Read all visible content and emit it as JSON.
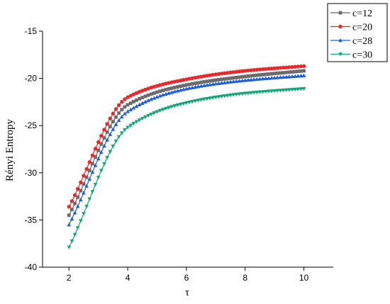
{
  "chart_data": {
    "type": "line",
    "xlabel": "τ",
    "ylabel": "Rényi  Entropy",
    "xlim": [
      1.1,
      11.0
    ],
    "ylim": [
      -40,
      -15
    ],
    "xticks": [
      2,
      4,
      6,
      8,
      10
    ],
    "yticks": [
      -40,
      -35,
      -30,
      -25,
      -20,
      -15
    ],
    "grid": false,
    "legend_position": "top-right",
    "x": [
      2,
      4,
      6,
      8,
      10
    ],
    "series": [
      {
        "name": "c=12",
        "color": "#6b6b6b",
        "marker": "square",
        "values": [
          -34.5,
          -22.8,
          -20.7,
          -19.8,
          -19.2
        ]
      },
      {
        "name": "c=20",
        "color": "#e8282d",
        "marker": "circle",
        "values": [
          -33.6,
          -22.0,
          -20.1,
          -19.2,
          -18.7
        ]
      },
      {
        "name": "c=28",
        "color": "#1f5fd6",
        "marker": "triangle-up",
        "values": [
          -35.5,
          -23.5,
          -21.1,
          -20.2,
          -19.7
        ]
      },
      {
        "name": "c=30",
        "color": "#13a47a",
        "marker": "triangle-down",
        "values": [
          -37.9,
          -25.2,
          -22.6,
          -21.6,
          -21.1
        ]
      }
    ]
  }
}
